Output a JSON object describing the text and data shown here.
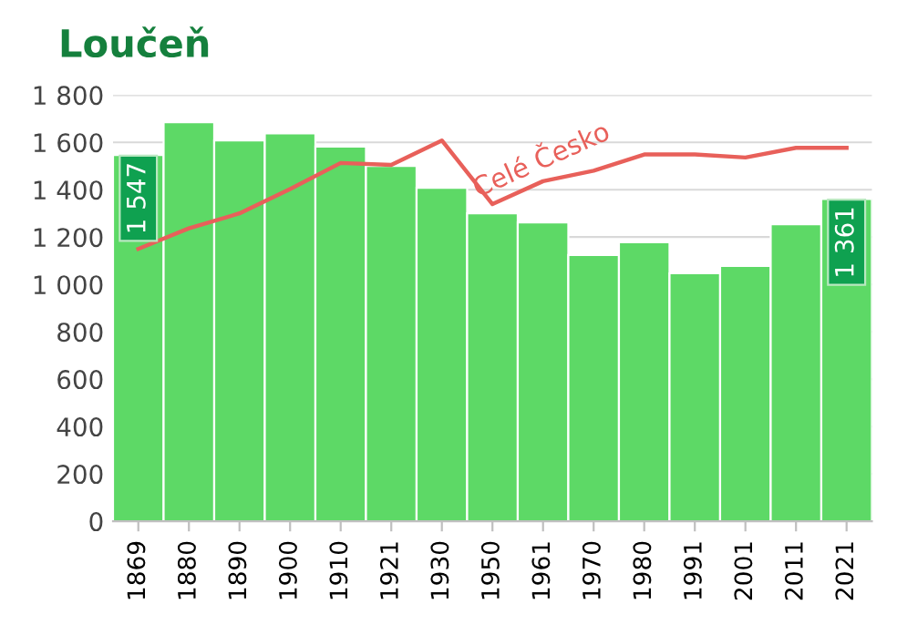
{
  "chart_data": {
    "type": "bar",
    "title": "Loučeň",
    "categories": [
      "1869",
      "1880",
      "1890",
      "1900",
      "1910",
      "1921",
      "1930",
      "1950",
      "1961",
      "1970",
      "1980",
      "1991",
      "2001",
      "2011",
      "2021"
    ],
    "series": [
      {
        "color": "#5dd966",
        "values": [
          1547,
          1685,
          1608,
          1638,
          1582,
          1500,
          1408,
          1300,
          1262,
          1124,
          1178,
          1047,
          1078,
          1254,
          1361
        ],
        "value_labels": [
          "1 547",
          null,
          null,
          null,
          null,
          null,
          null,
          null,
          null,
          null,
          null,
          null,
          null,
          null,
          "1 361"
        ]
      },
      {
        "type": "line",
        "color": "#e8605a",
        "values": [
          1150,
          1237,
          1300,
          1403,
          1513,
          1505,
          1608,
          1339,
          1436,
          1480,
          1549,
          1549,
          1536,
          1577,
          1577
        ]
      }
    ],
    "annotations": [
      "Celé Česko"
    ],
    "ylim": [
      0,
      1800
    ],
    "yticks": [
      0,
      200,
      400,
      600,
      800,
      {
        "value": 1000,
        "label": "1 000"
      },
      {
        "value": 1200,
        "label": "1 200"
      },
      {
        "value": 1400,
        "label": "1 400"
      },
      {
        "value": 1600,
        "label": "1 600"
      },
      {
        "value": 1800,
        "label": "1 800"
      }
    ],
    "grid": "y",
    "legend": false,
    "marker": "none",
    "line_style": "solid"
  }
}
